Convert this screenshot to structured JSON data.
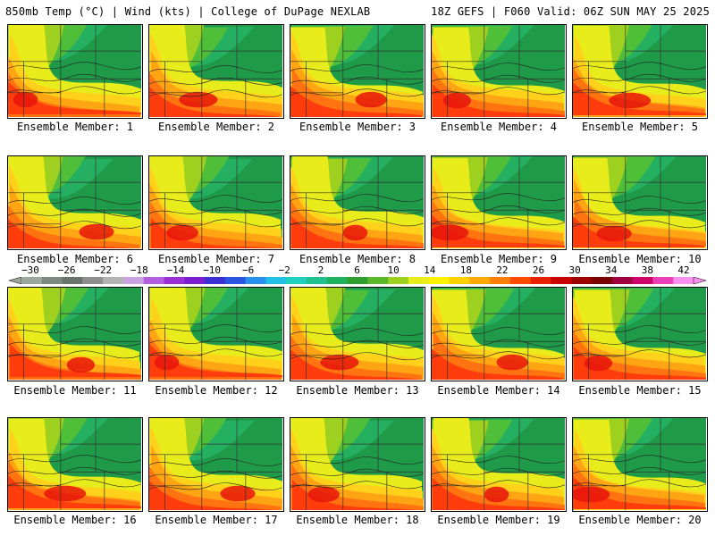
{
  "header": {
    "left": "850mb Temp (°C) | Wind (kts) | College of DuPage NEXLAB",
    "right": "18Z GEFS | F060 Valid: 06Z SUN MAY 25 2025"
  },
  "members": [
    "Ensemble Member: 1",
    "Ensemble Member: 2",
    "Ensemble Member: 3",
    "Ensemble Member: 4",
    "Ensemble Member: 5",
    "Ensemble Member: 6",
    "Ensemble Member: 7",
    "Ensemble Member: 8",
    "Ensemble Member: 9",
    "Ensemble Member: 10",
    "Ensemble Member: 11",
    "Ensemble Member: 12",
    "Ensemble Member: 13",
    "Ensemble Member: 14",
    "Ensemble Member: 15",
    "Ensemble Member: 16",
    "Ensemble Member: 17",
    "Ensemble Member: 18",
    "Ensemble Member: 19",
    "Ensemble Member: 20"
  ],
  "colorbar": {
    "labels": [
      "−30",
      "−26",
      "−22",
      "−18",
      "−14",
      "−10",
      "−6",
      "−2",
      "2",
      "6",
      "10",
      "14",
      "18",
      "22",
      "26",
      "30",
      "34",
      "38",
      "42"
    ],
    "colors": [
      "#9aa79a",
      "#7f8a7f",
      "#6b746b",
      "#8f8f8f",
      "#b3b3b3",
      "#c9a3e0",
      "#b15ee0",
      "#9b2fd6",
      "#7a1fd0",
      "#3a2fd0",
      "#2a55e0",
      "#2a90f0",
      "#22bfe8",
      "#22d0c0",
      "#20c090",
      "#1fb060",
      "#2e9e30",
      "#5bb82a",
      "#9ed11f",
      "#e7ec1a",
      "#fff200",
      "#ffd000",
      "#ffa800",
      "#ff7f00",
      "#ff4a00",
      "#e82000",
      "#c80000",
      "#9c0000",
      "#7a0000",
      "#a00040",
      "#d0006a",
      "#ec40b8",
      "#f890f0"
    ]
  }
}
